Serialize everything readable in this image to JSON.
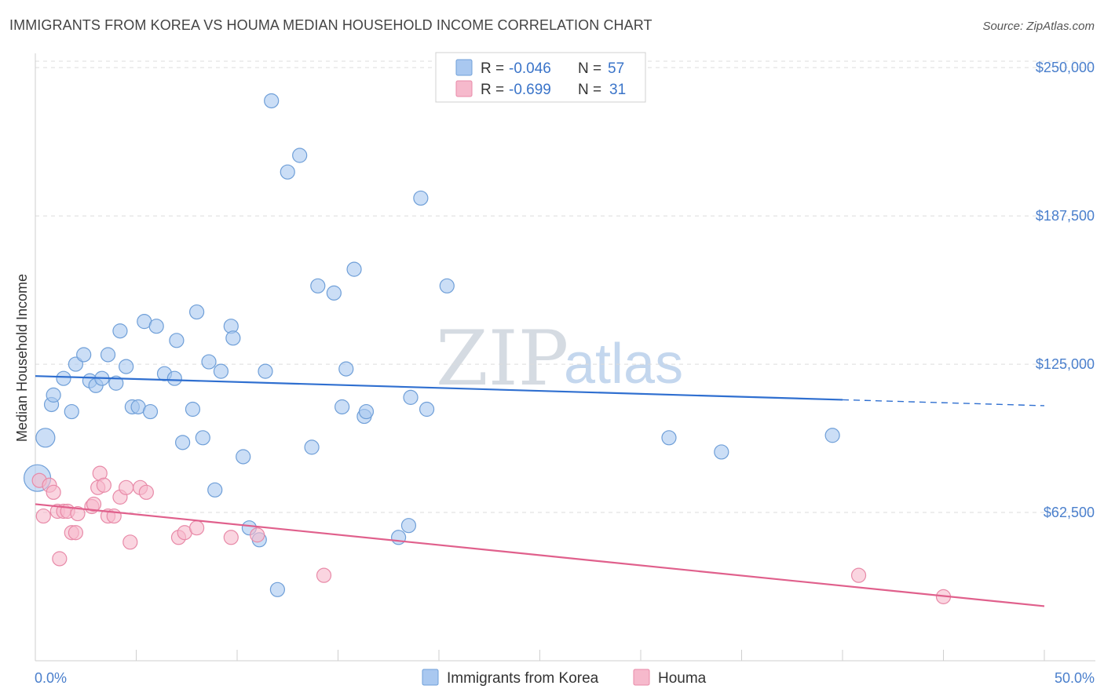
{
  "header": {
    "title": "IMMIGRANTS FROM KOREA VS HOUMA MEDIAN HOUSEHOLD INCOME CORRELATION CHART",
    "source": "Source: ZipAtlas.com"
  },
  "watermark": {
    "part1": "ZIP",
    "part2": "atlas"
  },
  "colors": {
    "korea_fill": "#a9c8f0",
    "korea_stroke": "#6f9fd8",
    "korea_line": "#2f6fd0",
    "houma_fill": "#f6b9cc",
    "houma_stroke": "#e88aa8",
    "houma_line": "#e0608c",
    "axis_text": "#4a7fcc",
    "grid": "#dcdcdc"
  },
  "legend": {
    "rows": [
      {
        "r_label": "R =",
        "r_value": "-0.046",
        "n_label": "N =",
        "n_value": "57"
      },
      {
        "r_label": "R =",
        "r_value": "-0.699",
        "n_label": "N =",
        "n_value": "31"
      }
    ]
  },
  "bottom_legend": {
    "items": [
      "Immigrants from Korea",
      "Houma"
    ]
  },
  "chart_data": {
    "type": "scatter",
    "title": "IMMIGRANTS FROM KOREA VS HOUMA MEDIAN HOUSEHOLD INCOME CORRELATION CHART",
    "xlabel": "",
    "ylabel": "Median Household Income",
    "xlim": [
      0,
      50
    ],
    "ylim": [
      0,
      256000
    ],
    "x_tick_labels": [
      "0.0%",
      "50.0%"
    ],
    "y_ticks": [
      62500,
      125000,
      187500,
      250000
    ],
    "y_tick_labels": [
      "$62,500",
      "$125,000",
      "$187,500",
      "$250,000"
    ],
    "grid": "horizontal dashed",
    "legend_position": "top-center",
    "series": [
      {
        "name": "Immigrants from Korea",
        "r": -0.046,
        "n": 57,
        "trend": {
          "x0": 0,
          "y0": 120000,
          "x1": 40,
          "y1": 110000,
          "dashed_to_x": 50,
          "dashed_to_y": 107500
        },
        "points": [
          [
            0.1,
            77000
          ],
          [
            0.5,
            94000
          ],
          [
            0.8,
            108000
          ],
          [
            0.9,
            112000
          ],
          [
            1.4,
            119000
          ],
          [
            1.8,
            105000
          ],
          [
            2.0,
            125000
          ],
          [
            2.4,
            129000
          ],
          [
            2.7,
            118000
          ],
          [
            3.0,
            116000
          ],
          [
            3.3,
            119000
          ],
          [
            3.6,
            129000
          ],
          [
            4.0,
            117000
          ],
          [
            4.2,
            139000
          ],
          [
            4.5,
            124000
          ],
          [
            4.8,
            107000
          ],
          [
            5.1,
            107000
          ],
          [
            5.4,
            143000
          ],
          [
            5.7,
            105000
          ],
          [
            6.0,
            141000
          ],
          [
            6.4,
            121000
          ],
          [
            6.9,
            119000
          ],
          [
            7.0,
            135000
          ],
          [
            7.3,
            92000
          ],
          [
            7.8,
            106000
          ],
          [
            8.0,
            147000
          ],
          [
            8.3,
            94000
          ],
          [
            8.6,
            126000
          ],
          [
            8.9,
            72000
          ],
          [
            9.2,
            122000
          ],
          [
            9.7,
            141000
          ],
          [
            9.8,
            136000
          ],
          [
            10.3,
            86000
          ],
          [
            10.6,
            56000
          ],
          [
            11.1,
            51000
          ],
          [
            11.4,
            122000
          ],
          [
            11.7,
            236000
          ],
          [
            12.0,
            30000
          ],
          [
            12.5,
            206000
          ],
          [
            13.1,
            213000
          ],
          [
            13.7,
            90000
          ],
          [
            14.0,
            158000
          ],
          [
            14.8,
            155000
          ],
          [
            15.2,
            107000
          ],
          [
            15.4,
            123000
          ],
          [
            15.8,
            165000
          ],
          [
            16.3,
            103000
          ],
          [
            16.4,
            105000
          ],
          [
            18.0,
            52000
          ],
          [
            18.5,
            57000
          ],
          [
            18.6,
            111000
          ],
          [
            19.1,
            195000
          ],
          [
            19.4,
            106000
          ],
          [
            20.4,
            158000
          ],
          [
            31.4,
            94000
          ],
          [
            34.0,
            88000
          ],
          [
            39.5,
            95000
          ]
        ]
      },
      {
        "name": "Houma",
        "r": -0.699,
        "n": 31,
        "trend": {
          "x0": 0,
          "y0": 66000,
          "x1": 50,
          "y1": 23000
        },
        "points": [
          [
            0.2,
            76000
          ],
          [
            0.4,
            61000
          ],
          [
            0.7,
            74000
          ],
          [
            0.9,
            71000
          ],
          [
            1.1,
            63000
          ],
          [
            1.2,
            43000
          ],
          [
            1.4,
            63000
          ],
          [
            1.6,
            63000
          ],
          [
            1.8,
            54000
          ],
          [
            2.0,
            54000
          ],
          [
            2.1,
            62000
          ],
          [
            2.8,
            65000
          ],
          [
            2.9,
            66000
          ],
          [
            3.1,
            73000
          ],
          [
            3.2,
            79000
          ],
          [
            3.4,
            74000
          ],
          [
            3.6,
            61000
          ],
          [
            3.9,
            61000
          ],
          [
            4.2,
            69000
          ],
          [
            4.5,
            73000
          ],
          [
            4.7,
            50000
          ],
          [
            5.2,
            73000
          ],
          [
            5.5,
            71000
          ],
          [
            7.1,
            52000
          ],
          [
            7.4,
            54000
          ],
          [
            8.0,
            56000
          ],
          [
            9.7,
            52000
          ],
          [
            11.0,
            53000
          ],
          [
            14.3,
            36000
          ],
          [
            40.8,
            36000
          ],
          [
            45.0,
            27000
          ]
        ]
      }
    ]
  }
}
